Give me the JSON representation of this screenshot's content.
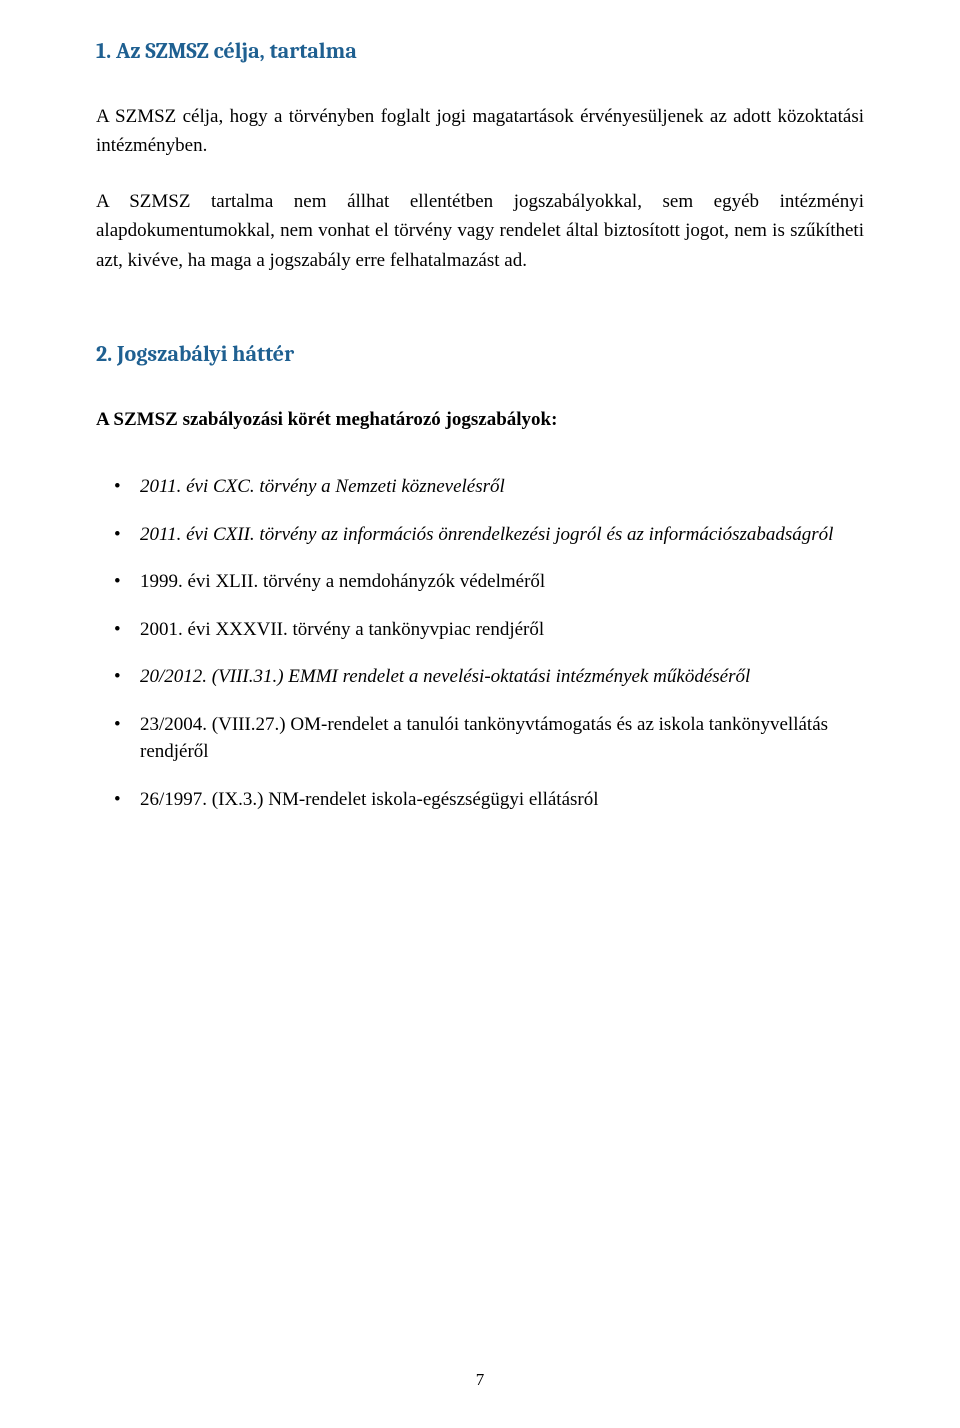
{
  "colors": {
    "headingColor": "#1f6091",
    "bodyColor": "#000000",
    "background": "#ffffff"
  },
  "typography": {
    "headingFont": "Cambria",
    "bodyFont": "Times New Roman",
    "headingSizePt": 16,
    "bodySizePt": 14
  },
  "heading1": "1. Az SZMSZ célja, tartalma",
  "para1": "A SZMSZ célja, hogy a törvényben foglalt jogi magatartások érvényesüljenek az adott közoktatási intézményben.",
  "para2": "A SZMSZ tartalma nem állhat ellentétben jogszabályokkal, sem egyéb intézményi alapdokumentumokkal, nem vonhat el törvény vagy rendelet által biztosított jogot, nem is szűkítheti azt, kivéve, ha maga a jogszabály erre felhatalmazást ad.",
  "heading2": "2. Jogszabályi háttér",
  "subheading": "A SZMSZ szabályozási körét meghatározó jogszabályok:",
  "bullets": [
    {
      "text": "2011. évi CXC. törvény a Nemzeti köznevelésről",
      "italic": true
    },
    {
      "text": "2011. évi CXII. törvény az információs önrendelkezési jogról és az információszabadságról",
      "italic": true
    },
    {
      "text": "1999. évi XLII. törvény a nemdohányzók védelméről",
      "italic": false
    },
    {
      "text": "2001. évi XXXVII. törvény a tankönyvpiac rendjéről",
      "italic": false
    },
    {
      "text": "20/2012. (VIII.31.) EMMI rendelet a nevelési-oktatási intézmények működéséről",
      "italic": true
    },
    {
      "text": "23/2004. (VIII.27.) OM-rendelet a tanulói tankönyvtámogatás és az iskola tankönyvellátás rendjéről",
      "italic": false
    },
    {
      "text": "26/1997. (IX.3.) NM-rendelet iskola-egészségügyi ellátásról",
      "italic": false
    }
  ],
  "pageNumber": "7"
}
